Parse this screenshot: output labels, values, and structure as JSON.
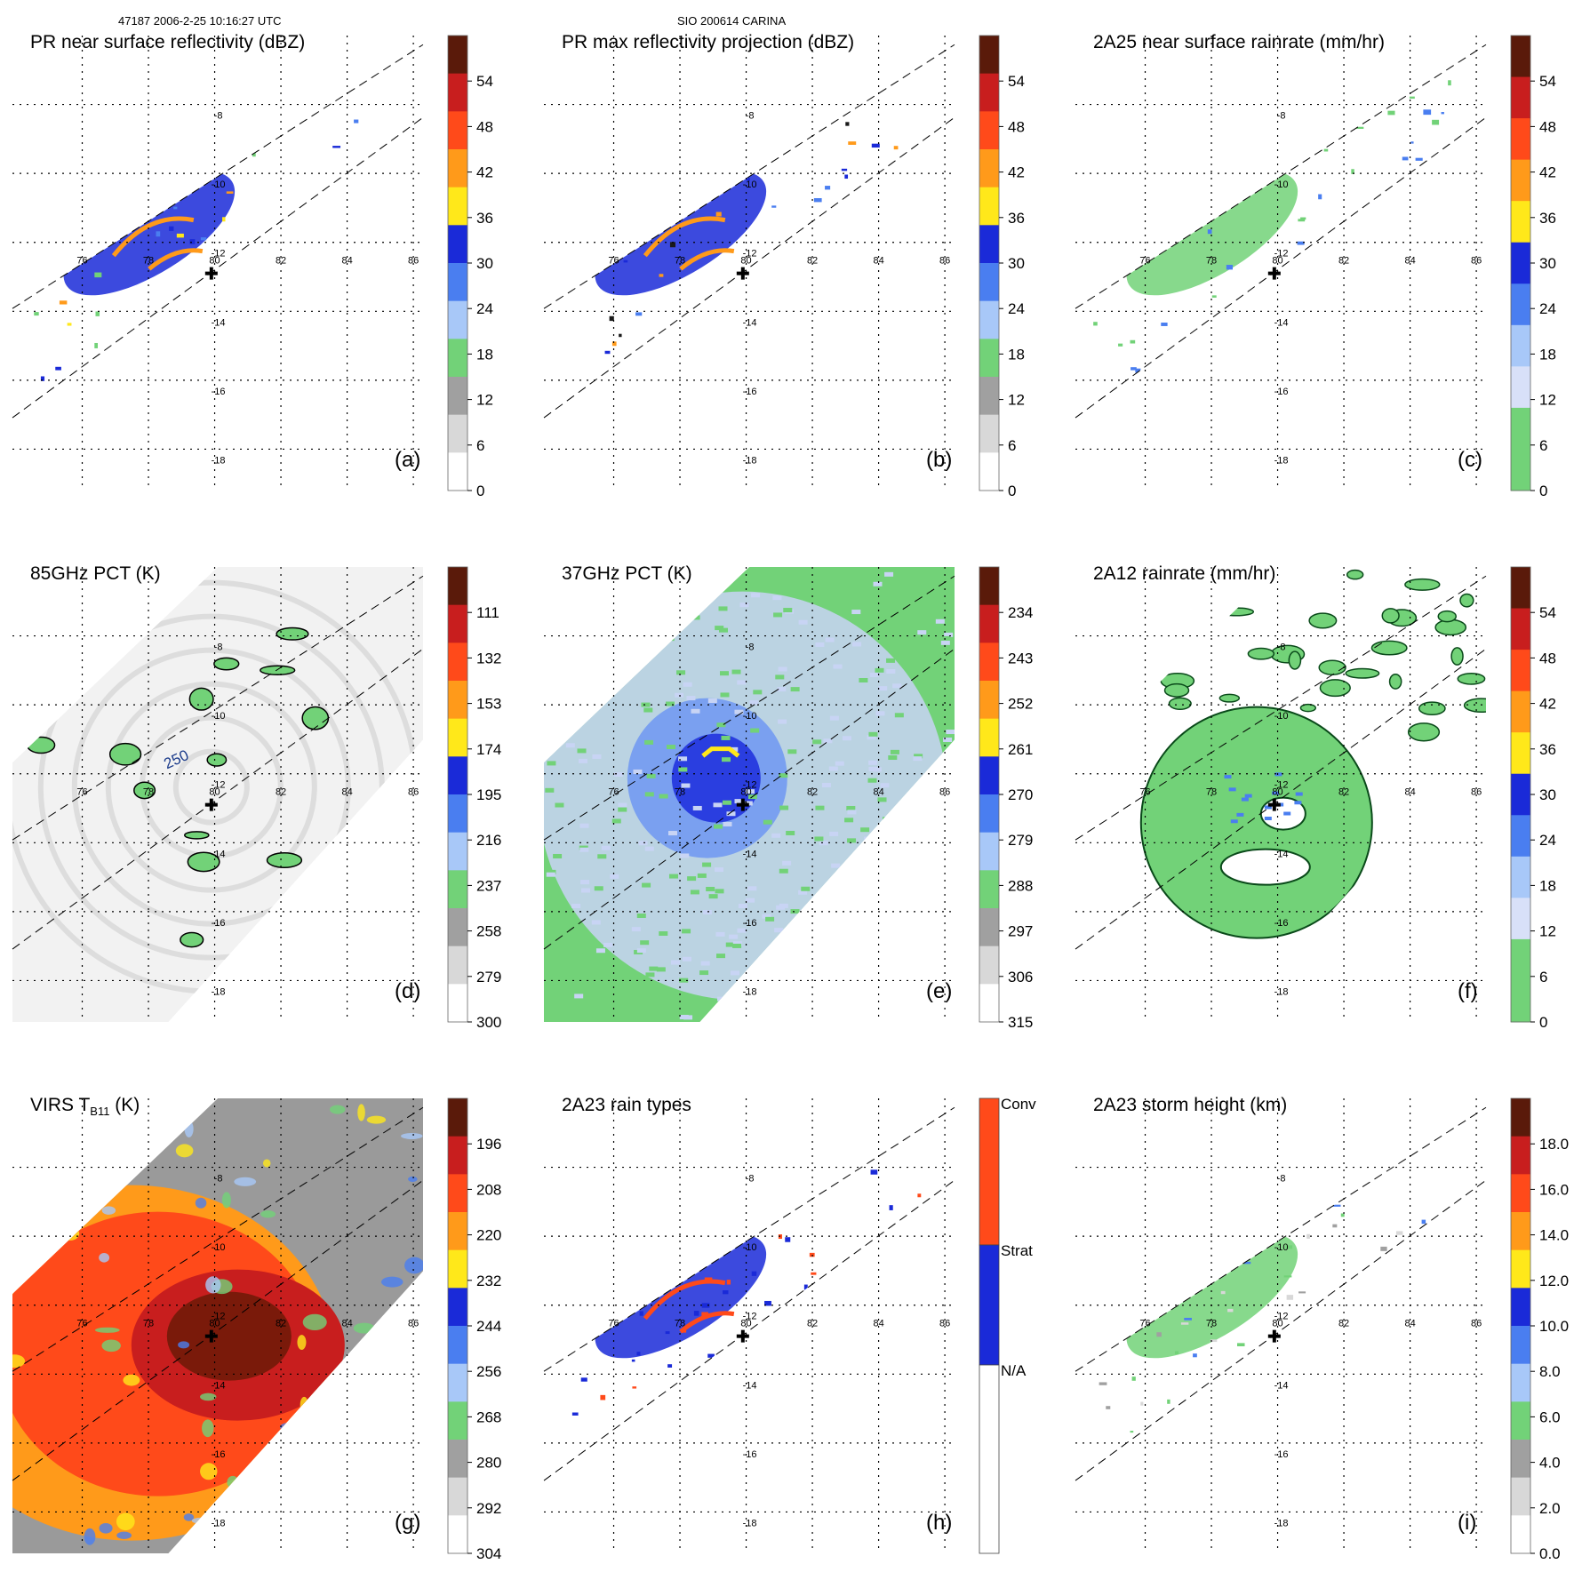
{
  "header": {
    "left": "47187 2006-2-25 10:16:27 UTC",
    "center": "SIO 200614 CARINA"
  },
  "axes": {
    "lon_ticks": [
      "76",
      "78",
      "80",
      "82",
      "84",
      "86"
    ],
    "lat_ticks": [
      "-8",
      "-10",
      "-12",
      "-14",
      "-16",
      "-18"
    ]
  },
  "chart_data": [
    {
      "id": "a",
      "type": "heatmap",
      "title": "PR near surface reflectivity (dBZ)",
      "label": "(a)",
      "colorbar_ticks": [
        "54",
        "48",
        "42",
        "36",
        "30",
        "24",
        "18",
        "12",
        "6",
        "0"
      ],
      "colorbar_colors": [
        "#5a1a0a",
        "#c81e1e",
        "#ff4a1a",
        "#ff9a1a",
        "#ffe81a",
        "#1a2ad8",
        "#4a7ef0",
        "#a8c8f8",
        "#72d278",
        "#a0a0a0",
        "#d8d8d8",
        "#ffffff"
      ]
    },
    {
      "id": "b",
      "type": "heatmap",
      "title": "PR max reflectivity projection (dBZ)",
      "label": "(b)",
      "colorbar_ticks": [
        "54",
        "48",
        "42",
        "36",
        "30",
        "24",
        "18",
        "12",
        "6",
        "0"
      ],
      "colorbar_colors": [
        "#5a1a0a",
        "#c81e1e",
        "#ff4a1a",
        "#ff9a1a",
        "#ffe81a",
        "#1a2ad8",
        "#4a7ef0",
        "#a8c8f8",
        "#72d278",
        "#a0a0a0",
        "#d8d8d8",
        "#ffffff"
      ]
    },
    {
      "id": "c",
      "type": "heatmap",
      "title": "2A25 near surface rainrate (mm/hr)",
      "label": "(c)",
      "colorbar_ticks": [
        "54",
        "48",
        "42",
        "36",
        "30",
        "24",
        "18",
        "12",
        "6",
        "0"
      ],
      "colorbar_colors": [
        "#5a1a0a",
        "#c81e1e",
        "#ff4a1a",
        "#ff9a1a",
        "#ffe81a",
        "#1a2ad8",
        "#4a7ef0",
        "#a8c8f8",
        "#d8e0f8",
        "#72d278",
        "#72d278"
      ]
    },
    {
      "id": "d",
      "type": "heatmap",
      "title": "85GHz PCT (K)",
      "label": "(d)",
      "colorbar_ticks": [
        "111",
        "132",
        "153",
        "174",
        "195",
        "216",
        "237",
        "258",
        "279",
        "300"
      ],
      "colorbar_colors": [
        "#5a1a0a",
        "#c81e1e",
        "#ff4a1a",
        "#ff9a1a",
        "#ffe81a",
        "#1a2ad8",
        "#4a7ef0",
        "#a8c8f8",
        "#72d278",
        "#a0a0a0",
        "#d8d8d8",
        "#ffffff"
      ],
      "contour_label": "250"
    },
    {
      "id": "e",
      "type": "heatmap",
      "title": "37GHz PCT (K)",
      "label": "(e)",
      "colorbar_ticks": [
        "234",
        "243",
        "252",
        "261",
        "270",
        "279",
        "288",
        "297",
        "306",
        "315"
      ],
      "colorbar_colors": [
        "#5a1a0a",
        "#c81e1e",
        "#ff4a1a",
        "#ff9a1a",
        "#ffe81a",
        "#1a2ad8",
        "#4a7ef0",
        "#a8c8f8",
        "#72d278",
        "#a0a0a0",
        "#d8d8d8",
        "#ffffff"
      ]
    },
    {
      "id": "f",
      "type": "heatmap",
      "title": "2A12 rainrate (mm/hr)",
      "label": "(f)",
      "colorbar_ticks": [
        "54",
        "48",
        "42",
        "36",
        "30",
        "24",
        "18",
        "12",
        "6",
        "0"
      ],
      "colorbar_colors": [
        "#5a1a0a",
        "#c81e1e",
        "#ff4a1a",
        "#ff9a1a",
        "#ffe81a",
        "#1a2ad8",
        "#4a7ef0",
        "#a8c8f8",
        "#d8e0f8",
        "#72d278",
        "#72d278"
      ]
    },
    {
      "id": "g",
      "type": "heatmap",
      "title_main": "VIRS T",
      "title_sub": "B11",
      "title_unit": " (K)",
      "label": "(g)",
      "colorbar_ticks": [
        "196",
        "208",
        "220",
        "232",
        "244",
        "256",
        "268",
        "280",
        "292",
        "304"
      ],
      "colorbar_colors": [
        "#5a1a0a",
        "#c81e1e",
        "#ff4a1a",
        "#ff9a1a",
        "#ffe81a",
        "#1a2ad8",
        "#4a7ef0",
        "#a8c8f8",
        "#72d278",
        "#a0a0a0",
        "#d8d8d8",
        "#ffffff"
      ]
    },
    {
      "id": "h",
      "type": "heatmap",
      "title": "2A23 rain types",
      "label": "(h)",
      "categories": [
        "Conv",
        "Strat",
        "N/A"
      ],
      "category_colors": [
        "#ff4a1a",
        "#1a2ad8",
        "#ffffff"
      ]
    },
    {
      "id": "i",
      "type": "heatmap",
      "title": "2A23 storm height (km)",
      "label": "(i)",
      "colorbar_ticks": [
        "18.0",
        "16.0",
        "14.0",
        "12.0",
        "10.0",
        "8.0",
        "6.0",
        "4.0",
        "2.0",
        "0.0"
      ],
      "colorbar_colors": [
        "#5a1a0a",
        "#c81e1e",
        "#ff4a1a",
        "#ff9a1a",
        "#ffe81a",
        "#1a2ad8",
        "#4a7ef0",
        "#a8c8f8",
        "#72d278",
        "#a0a0a0",
        "#d8d8d8",
        "#ffffff"
      ]
    }
  ]
}
